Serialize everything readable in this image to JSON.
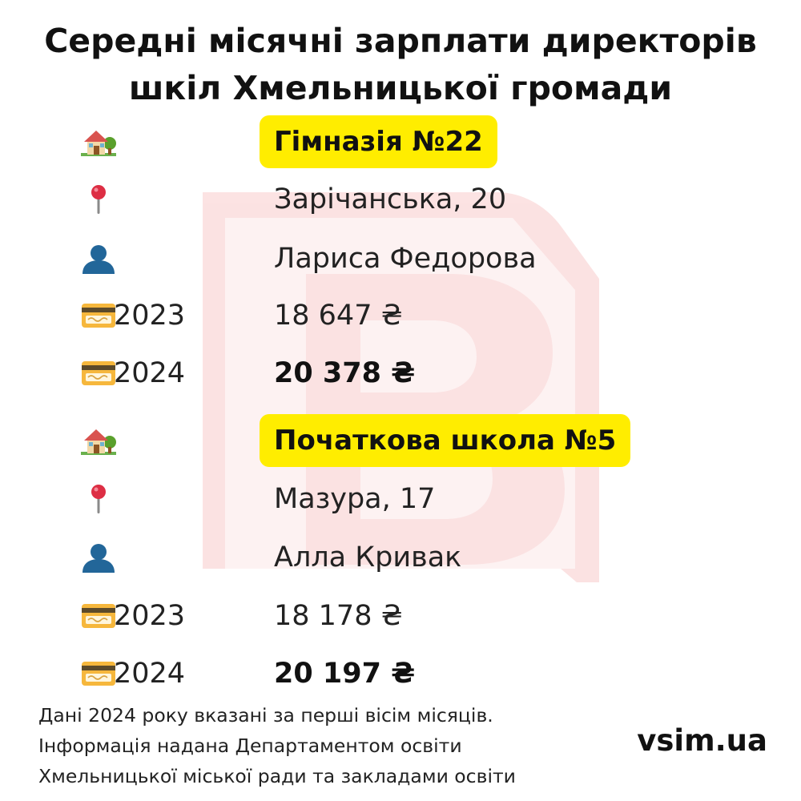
{
  "title": {
    "line1": "Середні місячні зарплати директорів",
    "line2": "шкіл Хмельницької громади"
  },
  "colors": {
    "highlight": "#ffed00",
    "watermark": "#e4191c",
    "text": "#111111"
  },
  "schools": [
    {
      "name": "Гімназія №22",
      "address": "Зарічанська, 20",
      "director": "Лариса Федорова",
      "salaries": [
        {
          "year": "2023",
          "amount": "18 647 ₴"
        },
        {
          "year": "2024",
          "amount": "20 378 ₴"
        }
      ]
    },
    {
      "name": "Початкова школа №5",
      "address": "Мазура, 17",
      "director": "Алла Кривак",
      "salaries": [
        {
          "year": "2023",
          "amount": "18 178 ₴"
        },
        {
          "year": "2024",
          "amount": "20 197 ₴"
        }
      ]
    }
  ],
  "icons": {
    "school": "house-with-garden-icon",
    "address": "round-pushpin-icon",
    "director": "bust-silhouette-icon",
    "salary": "credit-card-icon"
  },
  "footnote": [
    "Дані 2024 року вказані за перші вісім місяців.",
    "Інформація надана Департаментом освіти",
    "Хмельницької міської ради та закладами освіти"
  ],
  "brand": "vsim.ua"
}
